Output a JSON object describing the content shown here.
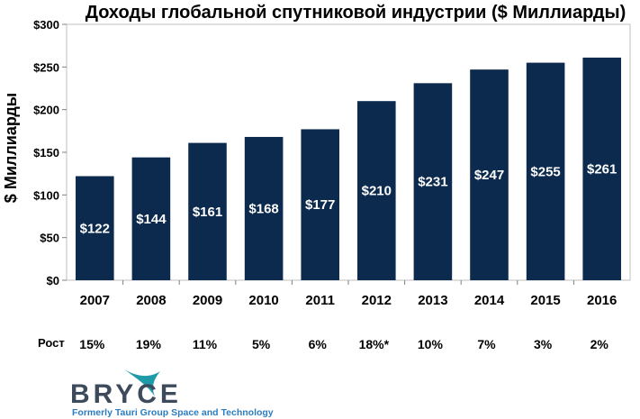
{
  "chart_data": {
    "type": "bar",
    "title": "Доходы глобальной спутниковой индустрии ($ Миллиарды)",
    "ylabel": "$ Миллиарды",
    "xlabel": "",
    "categories": [
      "2007",
      "2008",
      "2009",
      "2010",
      "2011",
      "2012",
      "2013",
      "2014",
      "2015",
      "2016"
    ],
    "values": [
      122,
      144,
      161,
      168,
      177,
      210,
      231,
      247,
      255,
      261
    ],
    "data_labels": [
      "$122",
      "$144",
      "$161",
      "$168",
      "$177",
      "$210",
      "$231",
      "$247",
      "$255",
      "$261"
    ],
    "ylim": [
      0,
      300
    ],
    "yticks": [
      0,
      50,
      100,
      150,
      200,
      250,
      300
    ],
    "ytick_labels": [
      "$0",
      "$50",
      "$100",
      "$150",
      "$200",
      "$250",
      "$300"
    ],
    "grid": false,
    "bar_color": "#0c2a4e",
    "growth_label": "Рост",
    "growth": [
      "15%",
      "19%",
      "11%",
      "5%",
      "6%",
      "18%*",
      "10%",
      "7%",
      "3%",
      "2%"
    ]
  },
  "logo": {
    "name": "BRYCE",
    "tagline": "Formerly Tauri Group Space and Technology",
    "accent_color": "#1e9aa8"
  }
}
